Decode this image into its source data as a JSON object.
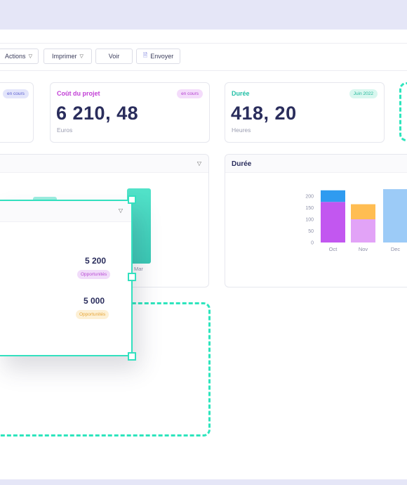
{
  "toolbar": {
    "actions_label": "Actions",
    "print_label": "Imprimer",
    "view_label": "Voir",
    "send_label": "Envoyer"
  },
  "kpis": [
    {
      "title": "",
      "badge": "en cours",
      "badge_bg": "#e3e5fb",
      "badge_fg": "#5b5fd0"
    },
    {
      "title": "Coût du projet",
      "badge": "en cours",
      "value": "6 210, 48",
      "unit": "Euros",
      "title_color": "#c23fd6",
      "badge_bg": "#f4dcfb",
      "badge_fg": "#b23fcf"
    },
    {
      "title": "Durée",
      "badge": "Juin 2022",
      "value": "418, 20",
      "unit": "Heures",
      "title_color": "#1fbfa5",
      "badge_bg": "#d8f7ef",
      "badge_fg": "#25b89b"
    }
  ],
  "left_chart": {
    "tick_label": "Mar"
  },
  "floating_card": {
    "stats": [
      {
        "value": "5 200",
        "label": "Opportunités",
        "badge_bg": "#f1dcfa",
        "badge_fg": "#b84bd4"
      },
      {
        "value": "5 000",
        "label": "Opportunités",
        "badge_bg": "#fdf0d5",
        "badge_fg": "#e6a63a"
      }
    ]
  },
  "duree_panel": {
    "title": "Durée"
  },
  "chart_data": {
    "type": "bar",
    "title": "Durée",
    "categories": [
      "Oct",
      "Nov",
      "Dec"
    ],
    "yticks": [
      0,
      50,
      100,
      150,
      200
    ],
    "ylim": [
      0,
      250
    ],
    "series": [
      {
        "values": [
          175,
          100,
          230
        ],
        "colors": [
          "#c257f0",
          "#e2a3f7",
          "#9ccbf7"
        ]
      },
      {
        "values": [
          50,
          65,
          0
        ],
        "colors": [
          "#2f9bf0",
          "#ffbd52",
          "#9ccbf7"
        ]
      }
    ]
  },
  "colors": {
    "accent": "#33e0bf",
    "bg_band": "#e5e6f7"
  }
}
